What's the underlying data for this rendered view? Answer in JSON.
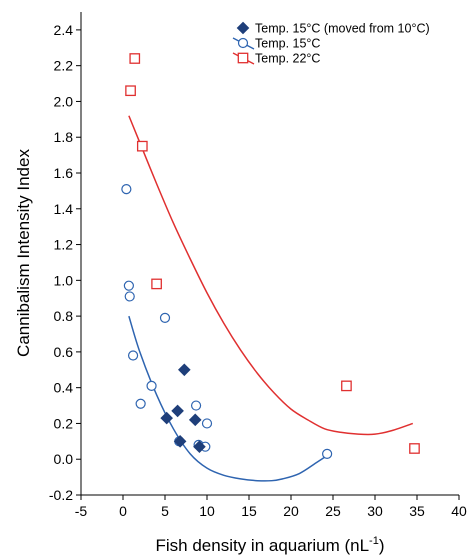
{
  "chart_data": {
    "type": "scatter",
    "title": "",
    "xlabel": "Fish density in aquarium (nL",
    "xlabel_superscript": "-1",
    "xlabel_suffix": ")",
    "ylabel": "Cannibalism Intensity Index",
    "xlim": [
      -5,
      40
    ],
    "ylim": [
      -0.2,
      2.5
    ],
    "xticks": [
      "-5",
      "0",
      "5",
      "10",
      "15",
      "20",
      "25",
      "30",
      "35",
      "40"
    ],
    "yticks": [
      "-0.2",
      "0.0",
      "0.2",
      "0.4",
      "0.6",
      "0.8",
      "1.0",
      "1.2",
      "1.4",
      "1.6",
      "1.8",
      "2.0",
      "2.2",
      "2.4"
    ],
    "grid": false,
    "legend_position": "top-right",
    "series": [
      {
        "name": "Temp. 15°C (moved from 10°C)",
        "marker": "diamond",
        "color": "#1f3f7a",
        "points": [
          [
            5.2,
            0.23
          ],
          [
            6.5,
            0.27
          ],
          [
            6.8,
            0.1
          ],
          [
            7.3,
            0.5
          ],
          [
            8.6,
            0.22
          ],
          [
            9.1,
            0.07
          ]
        ]
      },
      {
        "name": "Temp. 15°C",
        "marker": "open-circle",
        "color": "#2e64b0",
        "points": [
          [
            0.4,
            1.51
          ],
          [
            0.7,
            0.97
          ],
          [
            0.8,
            0.91
          ],
          [
            1.2,
            0.58
          ],
          [
            2.1,
            0.31
          ],
          [
            3.4,
            0.41
          ],
          [
            5.0,
            0.79
          ],
          [
            6.7,
            0.1
          ],
          [
            8.7,
            0.3
          ],
          [
            9.0,
            0.08
          ],
          [
            9.8,
            0.07
          ],
          [
            10.0,
            0.2
          ],
          [
            24.3,
            0.03
          ]
        ],
        "fit_curve": [
          [
            0.7,
            0.8
          ],
          [
            2,
            0.6
          ],
          [
            4,
            0.36
          ],
          [
            6,
            0.17
          ],
          [
            8,
            0.03
          ],
          [
            10,
            -0.05
          ],
          [
            12,
            -0.09
          ],
          [
            14,
            -0.11
          ],
          [
            16,
            -0.12
          ],
          [
            17.7,
            -0.12
          ],
          [
            19,
            -0.11
          ],
          [
            21,
            -0.08
          ],
          [
            23,
            -0.02
          ],
          [
            24.3,
            0.02
          ]
        ]
      },
      {
        "name": "Temp. 22°C",
        "marker": "open-square",
        "color": "#e03030",
        "points": [
          [
            0.9,
            2.06
          ],
          [
            1.4,
            2.24
          ],
          [
            2.3,
            1.75
          ],
          [
            4.0,
            0.98
          ],
          [
            26.6,
            0.41
          ],
          [
            34.7,
            0.06
          ]
        ],
        "fit_curve": [
          [
            0.7,
            1.92
          ],
          [
            2,
            1.77
          ],
          [
            4,
            1.54
          ],
          [
            6,
            1.32
          ],
          [
            8,
            1.12
          ],
          [
            10,
            0.93
          ],
          [
            12,
            0.76
          ],
          [
            14,
            0.61
          ],
          [
            16,
            0.48
          ],
          [
            18,
            0.37
          ],
          [
            20,
            0.28
          ],
          [
            22,
            0.22
          ],
          [
            24,
            0.17
          ],
          [
            26,
            0.15
          ],
          [
            28,
            0.14
          ],
          [
            30,
            0.14
          ],
          [
            32,
            0.16
          ],
          [
            34.5,
            0.2
          ]
        ]
      }
    ]
  }
}
